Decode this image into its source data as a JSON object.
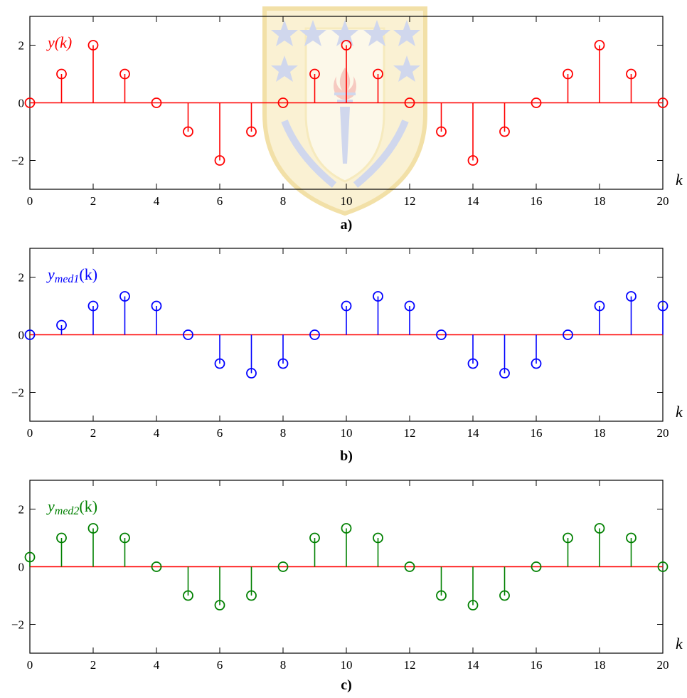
{
  "chart_data": [
    {
      "type": "stem",
      "series_label": {
        "main": "y",
        "sub": "",
        "arg": "(k)"
      },
      "caption": "a)",
      "xlabel": "k",
      "color": "#ff0000",
      "baseline_color": "#ff0000",
      "xlim": [
        0,
        20
      ],
      "ylim": [
        -3,
        3
      ],
      "xticks": [
        0,
        2,
        4,
        6,
        8,
        10,
        12,
        14,
        16,
        18,
        20
      ],
      "yticks": [
        -2,
        0,
        2
      ],
      "x": [
        0,
        1,
        2,
        3,
        4,
        5,
        6,
        7,
        8,
        9,
        10,
        11,
        12,
        13,
        14,
        15,
        16,
        17,
        18,
        19,
        20
      ],
      "values": [
        0,
        1,
        2,
        1,
        0,
        -1,
        -2,
        -1,
        0,
        1,
        2,
        1,
        0,
        -1,
        -2,
        -1,
        0,
        1,
        2,
        1,
        0
      ]
    },
    {
      "type": "stem",
      "series_label": {
        "main": "y",
        "sub": "med1",
        "arg": "(k)"
      },
      "caption": "b)",
      "xlabel": "k",
      "color": "#0000ff",
      "baseline_color": "#ff0000",
      "xlim": [
        0,
        20
      ],
      "ylim": [
        -3,
        3
      ],
      "xticks": [
        0,
        2,
        4,
        6,
        8,
        10,
        12,
        14,
        16,
        18,
        20
      ],
      "yticks": [
        -2,
        0,
        2
      ],
      "x": [
        0,
        1,
        2,
        3,
        4,
        5,
        6,
        7,
        8,
        9,
        10,
        11,
        12,
        13,
        14,
        15,
        16,
        17,
        18,
        19,
        20
      ],
      "values": [
        0,
        0.333,
        1,
        1.333,
        1,
        0,
        -1,
        -1.333,
        -1,
        0,
        1,
        1.333,
        1,
        0,
        -1,
        -1.333,
        -1,
        0,
        1,
        1.333,
        1
      ]
    },
    {
      "type": "stem",
      "series_label": {
        "main": "y",
        "sub": "med2",
        "arg": "(k)"
      },
      "caption": "c)",
      "xlabel": "k",
      "color": "#008000",
      "baseline_color": "#ff0000",
      "xlim": [
        0,
        20
      ],
      "ylim": [
        -3,
        3
      ],
      "xticks": [
        0,
        2,
        4,
        6,
        8,
        10,
        12,
        14,
        16,
        18,
        20
      ],
      "yticks": [
        -2,
        0,
        2
      ],
      "x": [
        0,
        1,
        2,
        3,
        4,
        5,
        6,
        7,
        8,
        9,
        10,
        11,
        12,
        13,
        14,
        15,
        16,
        17,
        18,
        19,
        20
      ],
      "values": [
        0.333,
        1,
        1.333,
        1,
        0,
        -1,
        -1.333,
        -1,
        0,
        1,
        1.333,
        1,
        0,
        -1,
        -1.333,
        -1,
        0,
        1,
        1.333,
        1,
        0
      ]
    }
  ],
  "watermark": {
    "type": "university-crest",
    "colors": {
      "gold": "#f2d77a",
      "blue": "#6a7fc4",
      "flame": "#e0644a"
    }
  }
}
